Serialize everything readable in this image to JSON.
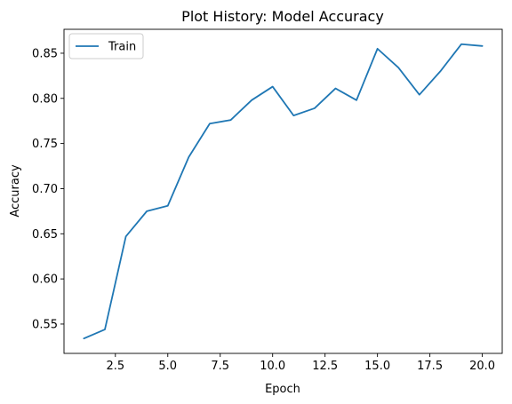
{
  "chart_data": {
    "type": "line",
    "title": "Plot History: Model Accuracy",
    "xlabel": "Epoch",
    "ylabel": "Accuracy",
    "xlim": [
      0.05,
      20.95
    ],
    "ylim": [
      0.5175,
      0.8765
    ],
    "xticks": [
      2.5,
      5.0,
      7.5,
      10.0,
      12.5,
      15.0,
      17.5,
      20.0
    ],
    "xtick_labels": [
      "2.5",
      "5.0",
      "7.5",
      "10.0",
      "12.5",
      "15.0",
      "17.5",
      "20.0"
    ],
    "yticks": [
      0.55,
      0.6,
      0.65,
      0.7,
      0.75,
      0.8,
      0.85
    ],
    "ytick_labels": [
      "0.55",
      "0.60",
      "0.65",
      "0.70",
      "0.75",
      "0.80",
      "0.85"
    ],
    "grid": false,
    "legend": "top-left",
    "x": [
      1,
      2,
      3,
      4,
      5,
      6,
      7,
      8,
      9,
      10,
      11,
      12,
      13,
      14,
      15,
      16,
      17,
      18,
      19,
      20
    ],
    "series": [
      {
        "name": "Train",
        "color": "#1f77b4",
        "values": [
          0.534,
          0.544,
          0.647,
          0.675,
          0.681,
          0.735,
          0.772,
          0.776,
          0.798,
          0.813,
          0.781,
          0.789,
          0.811,
          0.798,
          0.855,
          0.834,
          0.804,
          0.83,
          0.86,
          0.858
        ]
      }
    ]
  }
}
